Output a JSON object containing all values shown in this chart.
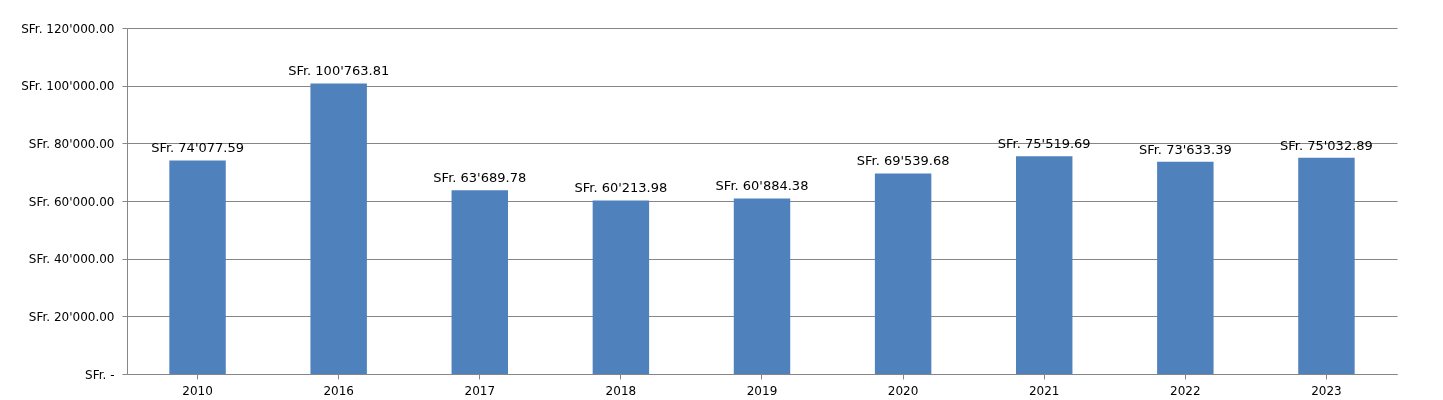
{
  "chart_data": {
    "type": "bar",
    "categories": [
      "2010",
      "2016",
      "2017",
      "2018",
      "2019",
      "2020",
      "2021",
      "2022",
      "2023"
    ],
    "values": [
      74077.59,
      100763.81,
      63689.78,
      60213.98,
      60884.38,
      69539.68,
      75519.69,
      73633.39,
      75032.89
    ],
    "value_labels": [
      "SFr. 74'077.59",
      "SFr. 100'763.81",
      "SFr. 63'689.78",
      "SFr. 60'213.98",
      "SFr. 60'884.38",
      "SFr. 69'539.68",
      "SFr. 75'519.69",
      "SFr. 73'633.39",
      "SFr. 75'032.89"
    ],
    "color": "#4f81bd",
    "ylim": [
      0,
      120000
    ],
    "yticks": [
      {
        "value": 0,
        "label": "SFr. -"
      },
      {
        "value": 20000,
        "label": "SFr. 20'000.00"
      },
      {
        "value": 40000,
        "label": "SFr. 40'000.00"
      },
      {
        "value": 60000,
        "label": "SFr. 60'000.00"
      },
      {
        "value": 80000,
        "label": "SFr. 80'000.00"
      },
      {
        "value": 100000,
        "label": "SFr. 100'000.00"
      },
      {
        "value": 120000,
        "label": "SFr. 120'000.00"
      }
    ],
    "grid": "y"
  }
}
